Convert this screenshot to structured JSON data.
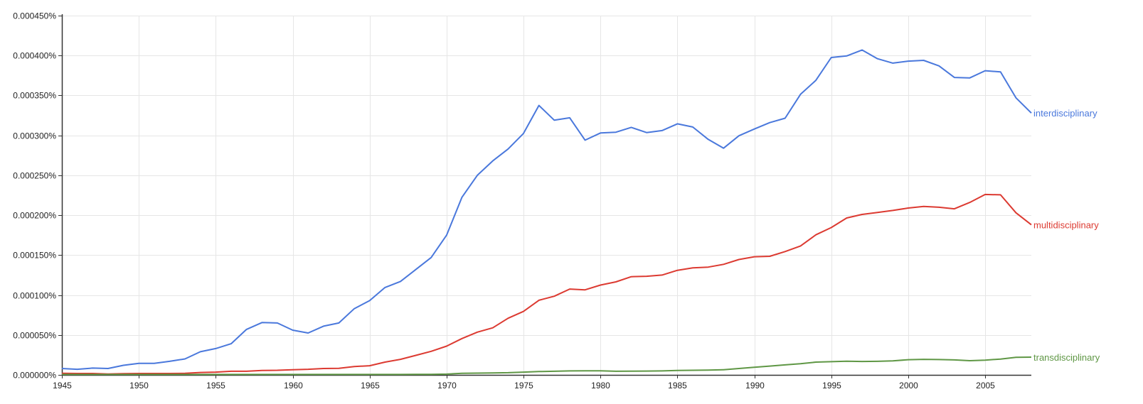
{
  "chart_data": {
    "type": "line",
    "title": "",
    "xlabel": "",
    "ylabel": "",
    "xlim": [
      1945,
      2008
    ],
    "ylim": [
      0,
      0.00045
    ],
    "grid": true,
    "legend": "inline at right end of each line",
    "x_ticks": [
      "1945",
      "1950",
      "1955",
      "1960",
      "1965",
      "1970",
      "1975",
      "1980",
      "1985",
      "1990",
      "1995",
      "2000",
      "2005"
    ],
    "x_tick_values": [
      1945,
      1950,
      1955,
      1960,
      1965,
      1970,
      1975,
      1980,
      1985,
      1990,
      1995,
      2000,
      2005
    ],
    "y_ticks": [
      "0.000000%",
      "0.000050%",
      "0.000100%",
      "0.000150%",
      "0.000200%",
      "0.000250%",
      "0.000300%",
      "0.000350%",
      "0.000400%",
      "0.000450%"
    ],
    "y_tick_values": [
      0,
      5e-05,
      0.0001,
      0.00015,
      0.0002,
      0.00025,
      0.0003,
      0.00035,
      0.0004,
      0.00045
    ],
    "x": [
      1945,
      1946,
      1947,
      1948,
      1949,
      1950,
      1951,
      1952,
      1953,
      1954,
      1955,
      1956,
      1957,
      1958,
      1959,
      1960,
      1961,
      1962,
      1963,
      1964,
      1965,
      1966,
      1967,
      1968,
      1969,
      1970,
      1971,
      1972,
      1973,
      1974,
      1975,
      1976,
      1977,
      1978,
      1979,
      1980,
      1981,
      1982,
      1983,
      1984,
      1985,
      1986,
      1987,
      1988,
      1989,
      1990,
      1991,
      1992,
      1993,
      1994,
      1995,
      1996,
      1997,
      1998,
      1999,
      2000,
      2001,
      2002,
      2003,
      2004,
      2005,
      2006,
      2007,
      2008
    ],
    "series": [
      {
        "name": "interdisciplinary",
        "color": "#4a78dc",
        "values": [
          8e-06,
          7e-06,
          8.5e-06,
          8e-06,
          1.2e-05,
          1.45e-05,
          1.45e-05,
          1.7e-05,
          2e-05,
          2.9e-05,
          3.3e-05,
          3.9e-05,
          5.7e-05,
          6.55e-05,
          6.5e-05,
          5.6e-05,
          5.25e-05,
          6.1e-05,
          6.5e-05,
          8.3e-05,
          9.3e-05,
          0.0001095,
          0.000117,
          0.000132,
          0.000147,
          0.000175,
          0.0002225,
          0.00025,
          0.000268,
          0.000283,
          0.0003025,
          0.0003375,
          0.000319,
          0.000322,
          0.000294,
          0.000303,
          0.000304,
          0.00031,
          0.0003035,
          0.000306,
          0.0003145,
          0.0003105,
          0.000295,
          0.000284,
          0.0002995,
          0.000308,
          0.000316,
          0.0003215,
          0.0003515,
          0.000369,
          0.0003975,
          0.0003995,
          0.000407,
          0.000396,
          0.0003905,
          0.000393,
          0.000394,
          0.000387,
          0.0003725,
          0.000372,
          0.000381,
          0.0003795,
          0.000347,
          0.000328
        ]
      },
      {
        "name": "multidisciplinary",
        "color": "#dc3a31",
        "values": [
          2e-06,
          1.8e-06,
          1.8e-06,
          1.2e-06,
          1.5e-06,
          1.8e-06,
          1.8e-06,
          1.8e-06,
          2e-06,
          3e-06,
          3.5e-06,
          4.5e-06,
          4.5e-06,
          5.5e-06,
          5.8e-06,
          6.5e-06,
          7e-06,
          8e-06,
          8.3e-06,
          1.05e-05,
          1.15e-05,
          1.6e-05,
          1.95e-05,
          2.45e-05,
          2.95e-05,
          3.6e-05,
          4.55e-05,
          5.35e-05,
          5.9e-05,
          7.1e-05,
          7.95e-05,
          9.35e-05,
          9.85e-05,
          0.0001075,
          0.0001065,
          0.0001125,
          0.0001165,
          0.000123,
          0.0001235,
          0.000125,
          0.000131,
          0.000134,
          0.000135,
          0.0001385,
          0.0001445,
          0.000148,
          0.0001485,
          0.0001545,
          0.0001615,
          0.0001755,
          0.0001845,
          0.0001965,
          0.000201,
          0.0002035,
          0.000206,
          0.000209,
          0.000211,
          0.00021,
          0.000208,
          0.000216,
          0.000226,
          0.0002255,
          0.000203,
          0.000188
        ]
      },
      {
        "name": "transdisciplinary",
        "color": "#5f9745",
        "values": [
          5e-07,
          5e-07,
          5e-07,
          5e-07,
          5e-07,
          5e-07,
          5e-07,
          5e-07,
          5e-07,
          5e-07,
          5e-07,
          5e-07,
          5e-07,
          5e-07,
          5e-07,
          5e-07,
          5e-07,
          5e-07,
          5e-07,
          5e-07,
          5e-07,
          5e-07,
          5e-07,
          6e-07,
          7e-07,
          1e-06,
          2e-06,
          2.2e-06,
          2.5e-06,
          2.8e-06,
          3.5e-06,
          4.2e-06,
          4.5e-06,
          5e-06,
          5.2e-06,
          5.2e-06,
          4.5e-06,
          4.6e-06,
          4.8e-06,
          5e-06,
          5.5e-06,
          5.8e-06,
          6e-06,
          6.5e-06,
          8e-06,
          9.5e-06,
          1.1e-05,
          1.25e-05,
          1.4e-05,
          1.6e-05,
          1.65e-05,
          1.72e-05,
          1.68e-05,
          1.7e-05,
          1.75e-05,
          1.9e-05,
          1.95e-05,
          1.92e-05,
          1.88e-05,
          1.78e-05,
          1.85e-05,
          1.98e-05,
          2.2e-05,
          2.22e-05
        ]
      }
    ]
  }
}
